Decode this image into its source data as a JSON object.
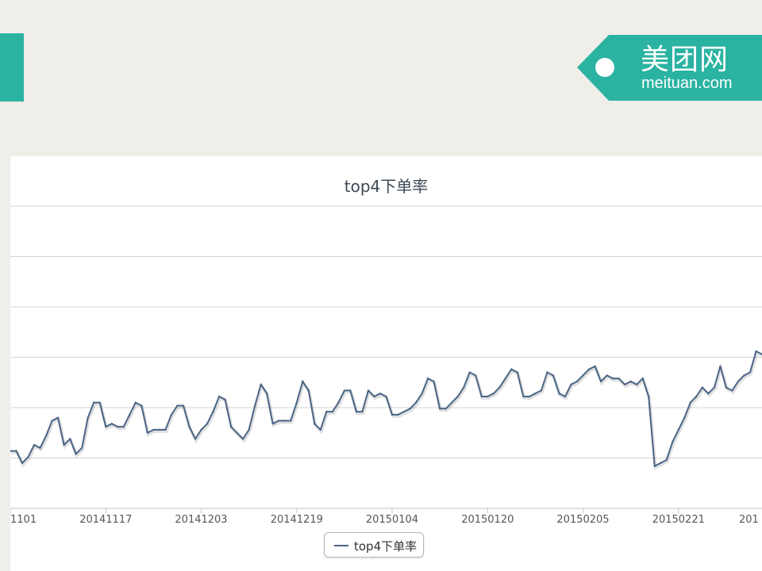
{
  "header": {
    "brand_cn": "美团网",
    "brand_en": "meituan.com",
    "accent": "#2bb3a2"
  },
  "chart_data": {
    "type": "line",
    "title": "top4下单率",
    "xlabel": "",
    "ylabel": "",
    "grid": true,
    "legend_placement": "bottom-center",
    "y_tick_labels_visible": false,
    "ylim": [
      0,
      100
    ],
    "x_tick_labels": [
      "1101",
      "20141117",
      "20141203",
      "20141219",
      "20150104",
      "20150120",
      "20150205",
      "20150221",
      "201"
    ],
    "series": [
      {
        "name": "top4下单率",
        "color": "#4a6585",
        "x_start": "20141101",
        "values": [
          19,
          19,
          15,
          17,
          21,
          20,
          24,
          29,
          30,
          21,
          23,
          18,
          20,
          30,
          35,
          35,
          27,
          28,
          27,
          27,
          31,
          35,
          34,
          25,
          26,
          26,
          26,
          31,
          34,
          34,
          27,
          23,
          26,
          28,
          32,
          37,
          36,
          27,
          25,
          23,
          26,
          34,
          41,
          38,
          28,
          29,
          29,
          29,
          35,
          42,
          39,
          28,
          26,
          32,
          32,
          35,
          39,
          39,
          32,
          32,
          39,
          37,
          38,
          37,
          31,
          31,
          32,
          33,
          35,
          38,
          43,
          42,
          33,
          33,
          35,
          37,
          40,
          45,
          44,
          37,
          37,
          38,
          40,
          43,
          46,
          45,
          37,
          37,
          38,
          39,
          45,
          44,
          38,
          37,
          41,
          42,
          44,
          46,
          47,
          42,
          44,
          43,
          43,
          41,
          42,
          41,
          43,
          37,
          14,
          15,
          16,
          22,
          26,
          30,
          35,
          37,
          40,
          38,
          40,
          47,
          40,
          39,
          42,
          44,
          45,
          52,
          51
        ]
      }
    ]
  }
}
